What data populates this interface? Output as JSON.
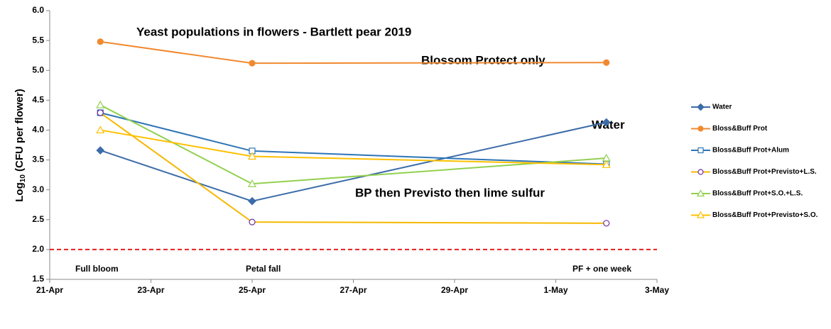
{
  "chart_data": {
    "type": "line",
    "title": "Yeast populations in flowers - Bartlett pear 2019",
    "y_label": {
      "main": "Log",
      "sub": "10",
      "rest": " (CFU per flower)"
    },
    "annotations": [
      "Blossom Protect only",
      "Water",
      "BP then Previsto then lime sulfur",
      "Full bloom",
      "Petal fall",
      "PF + one week"
    ],
    "x": [
      "22-Apr",
      "25-Apr",
      "2-May"
    ],
    "xlim": [
      "21-Apr",
      "3-May"
    ],
    "xticks": [
      "21-Apr",
      "23-Apr",
      "25-Apr",
      "27-Apr",
      "29-Apr",
      "1-May",
      "3-May"
    ],
    "ylim": [
      1.5,
      6
    ],
    "yticks": [
      1.5,
      {
        "value": 2,
        "label": "2.0"
      },
      2.5,
      {
        "value": 3,
        "label": "3.0"
      },
      3.5,
      {
        "value": 4,
        "label": "4.0"
      },
      4.5,
      {
        "value": 5,
        "label": "5.0"
      },
      5.5,
      {
        "value": 6,
        "label": "6.0"
      }
    ],
    "reference_line": {
      "value": 2,
      "color": "#e32020"
    },
    "series": [
      {
        "name": "Water",
        "color": "#3c6ca8",
        "marker": "diamond",
        "marker_fill": true,
        "marker_color": "#3c6ca8",
        "values": [
          3.66,
          2.81,
          4.13
        ]
      },
      {
        "name": "Bloss&Buff Prot",
        "color": "#f08a30",
        "marker": "circle",
        "marker_fill": true,
        "marker_color": "#f08a30",
        "values": [
          5.48,
          5.12,
          5.13
        ]
      },
      {
        "name": "Bloss&Buff Prot+Alum",
        "color": "#2e75b6",
        "marker": "square",
        "marker_fill": false,
        "marker_color": "#2e75b6",
        "values": [
          4.29,
          3.65,
          3.43
        ]
      },
      {
        "name": "Bloss&Buff Prot+Previsto+L.S.",
        "color": "#f5b800",
        "marker": "circle",
        "marker_fill": false,
        "marker_color": "#7030a0",
        "values": [
          4.29,
          2.46,
          2.44
        ]
      },
      {
        "name": "Bloss&Buff Prot+S.O.+L.S.",
        "color": "#92d050",
        "marker": "triangle",
        "marker_fill": false,
        "marker_color": "#92d050",
        "values": [
          4.42,
          3.1,
          3.53
        ]
      },
      {
        "name": "Bloss&Buff Prot+Previsto+S.O.",
        "color": "#ffc000",
        "marker": "triangle",
        "marker_fill": false,
        "marker_color": "#ffc000",
        "values": [
          4.0,
          3.56,
          3.42
        ]
      }
    ]
  }
}
